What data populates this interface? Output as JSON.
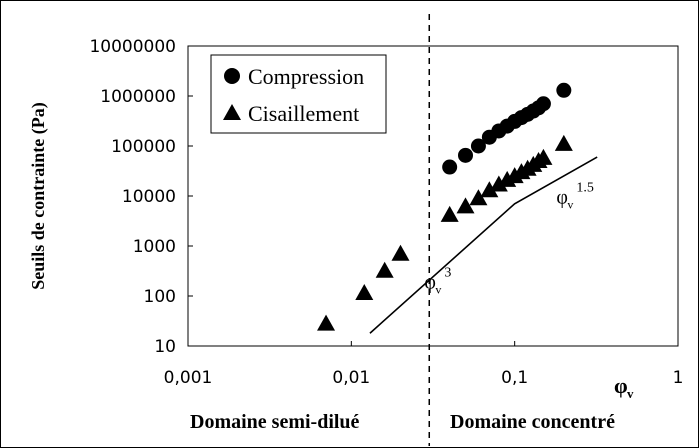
{
  "chart_data": {
    "type": "scatter",
    "ylabel": "Seuils de contrainte (Pa)",
    "xaxis_label": "φ",
    "xaxis_label_sub": "v",
    "xscale": "log",
    "yscale": "log",
    "xlim": [
      0.001,
      1
    ],
    "ylim": [
      10,
      10000000
    ],
    "x_ticks": [
      "0,001",
      "0,01",
      "0,1",
      "1"
    ],
    "y_ticks": [
      "10000000",
      "1000000",
      "100000",
      "10000",
      "1000",
      "100",
      "10"
    ],
    "grid": false,
    "legend_position": "top-left",
    "series": [
      {
        "name": "Compression",
        "marker": "circle",
        "color": "#000000",
        "points": [
          [
            0.04,
            38000
          ],
          [
            0.05,
            65000
          ],
          [
            0.06,
            100000
          ],
          [
            0.07,
            150000
          ],
          [
            0.08,
            200000
          ],
          [
            0.09,
            250000
          ],
          [
            0.1,
            310000
          ],
          [
            0.11,
            370000
          ],
          [
            0.12,
            430000
          ],
          [
            0.13,
            500000
          ],
          [
            0.14,
            580000
          ],
          [
            0.15,
            700000
          ],
          [
            0.2,
            1300000
          ]
        ]
      },
      {
        "name": "Cisaillement",
        "marker": "triangle",
        "color": "#000000",
        "points": [
          [
            0.007,
            28
          ],
          [
            0.012,
            115
          ],
          [
            0.016,
            320
          ],
          [
            0.02,
            700
          ],
          [
            0.04,
            4200
          ],
          [
            0.05,
            6200
          ],
          [
            0.06,
            9000
          ],
          [
            0.07,
            13000
          ],
          [
            0.08,
            17000
          ],
          [
            0.09,
            21000
          ],
          [
            0.1,
            25000
          ],
          [
            0.11,
            30000
          ],
          [
            0.12,
            35000
          ],
          [
            0.13,
            42000
          ],
          [
            0.14,
            50000
          ],
          [
            0.15,
            58000
          ],
          [
            0.2,
            110000
          ]
        ]
      }
    ],
    "trend_lines": [
      {
        "points": [
          [
            0.013,
            18
          ],
          [
            0.1,
            7000
          ],
          [
            0.32,
            60000
          ]
        ]
      }
    ],
    "annotations": [
      {
        "base": "φ",
        "sub": "v",
        "sup": "3",
        "x": 0.028,
        "y": 140
      },
      {
        "base": "φ",
        "sub": "v",
        "sup": "1.5",
        "x": 0.18,
        "y": 7000
      }
    ],
    "divider": {
      "x": 0.03,
      "style": "dashed"
    },
    "regions": [
      {
        "label": "Domaine semi-dilué"
      },
      {
        "label": "Domaine concentré"
      }
    ]
  }
}
